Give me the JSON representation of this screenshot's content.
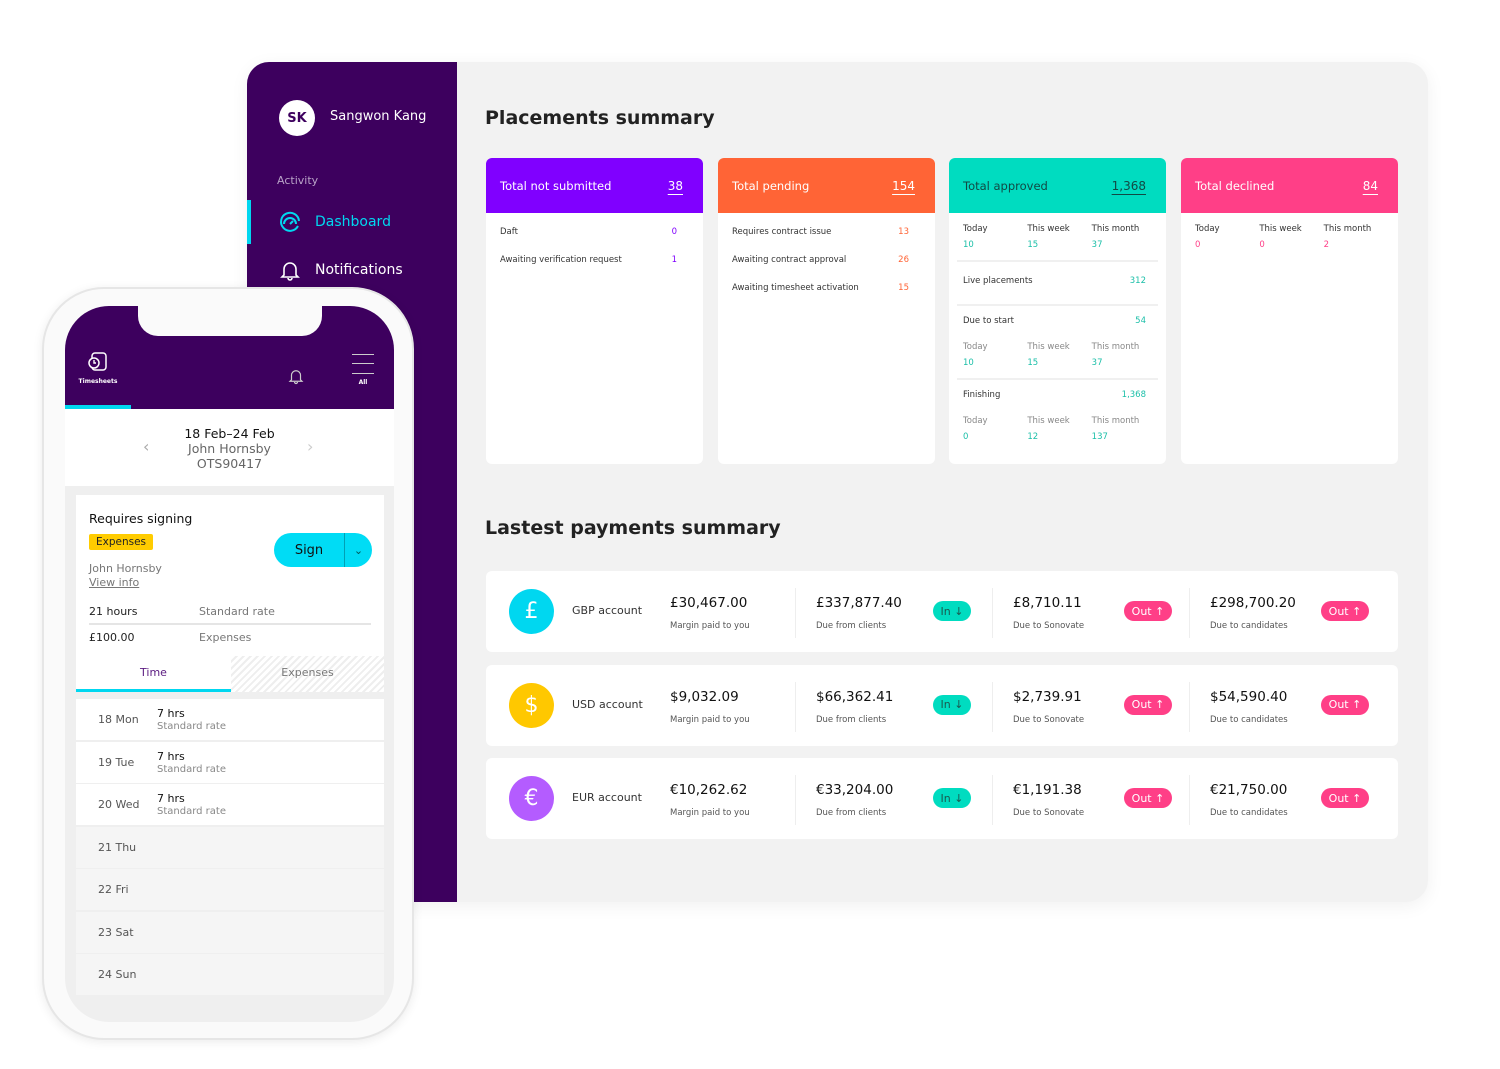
{
  "sidebar": {
    "initials": "SK",
    "user": "Sangwon Kang",
    "section": "Activity",
    "items": [
      {
        "label": "Dashboard",
        "icon": "gauge-icon"
      },
      {
        "label": "Notifications",
        "icon": "bell-icon"
      }
    ]
  },
  "placements": {
    "title": "Placements summary",
    "cards": [
      {
        "title": "Total not submitted",
        "total": "38",
        "color": "#8000ff",
        "rows": [
          {
            "label": "Daft",
            "value": "0"
          },
          {
            "label": "Awaiting verification request",
            "value": "1"
          }
        ]
      },
      {
        "title": "Total pending",
        "total": "154",
        "color": "#ff6436",
        "rows": [
          {
            "label": "Requires contract issue",
            "value": "13"
          },
          {
            "label": "Awaiting contract approval",
            "value": "26"
          },
          {
            "label": "Awaiting timesheet activation",
            "value": "15"
          }
        ]
      },
      {
        "title": "Total approved",
        "total": "1,368",
        "color": "#00dcc0",
        "sections": [
          {
            "periods": [
              "Today",
              "This week",
              "This month"
            ],
            "values": [
              "10",
              "15",
              "37"
            ]
          },
          {
            "label": "Live placements",
            "value": "312"
          },
          {
            "label": "Due to start",
            "value": "54",
            "periods": [
              "Today",
              "This week",
              "This month"
            ],
            "values": [
              "10",
              "15",
              "37"
            ]
          },
          {
            "label": "Finishing",
            "value": "1,368",
            "periods": [
              "Today",
              "This week",
              "This month"
            ],
            "values": [
              "0",
              "12",
              "137"
            ]
          }
        ]
      },
      {
        "title": "Total declined",
        "total": "84",
        "color": "#ff3f87",
        "sections": [
          {
            "periods": [
              "Today",
              "This week",
              "This month"
            ],
            "values": [
              "0",
              "0",
              "2"
            ]
          }
        ]
      }
    ]
  },
  "payments": {
    "title": "Lastest payments summary",
    "rows": [
      {
        "symbol": "£",
        "color": "#00d7f0",
        "account": "GBP account",
        "margin": "£30,467.00",
        "margin_label": "Margin paid to you",
        "clients": "£337,877.40",
        "clients_label": "Due from clients",
        "in": "In ↓",
        "sonovate": "£8,710.11",
        "sonovate_label": "Due to Sonovate",
        "out1": "Out ↑",
        "candidates": "£298,700.20",
        "candidates_label": "Due to candidates",
        "out2": "Out ↑"
      },
      {
        "symbol": "$",
        "color": "#ffc800",
        "account": "USD account",
        "margin": "$9,032.09",
        "margin_label": "Margin paid to you",
        "clients": "$66,362.41",
        "clients_label": "Due from clients",
        "in": "In ↓",
        "sonovate": "$2,739.91",
        "sonovate_label": "Due to Sonovate",
        "out1": "Out ↑",
        "candidates": "$54,590.40",
        "candidates_label": "Due to candidates",
        "out2": "Out ↑"
      },
      {
        "symbol": "€",
        "color": "#b45cff",
        "account": "EUR account",
        "margin": "€10,262.62",
        "margin_label": "Margin paid to you",
        "clients": "€33,204.00",
        "clients_label": "Due from clients",
        "in": "In ↓",
        "sonovate": "€1,191.38",
        "sonovate_label": "Due to Sonovate",
        "out1": "Out ↑",
        "candidates": "€21,750.00",
        "candidates_label": "Due to candidates",
        "out2": "Out ↑"
      }
    ]
  },
  "phone": {
    "tabs": {
      "timesheets": "Timesheets",
      "all": "All"
    },
    "range": "18 Feb–24 Feb",
    "name": "John Hornsby",
    "code": "OTS90417",
    "card": {
      "title": "Requires signing",
      "tag": "Expenses",
      "person": "John Hornsby",
      "link": "View info",
      "sign": "Sign",
      "hours": "21 hours",
      "hours_label": "Standard rate",
      "amount": "£100.00",
      "amount_label": "Expenses"
    },
    "subtabs": [
      "Time",
      "Expenses"
    ],
    "days": [
      {
        "day": "18 Mon",
        "hrs": "7 hrs",
        "rate": "Standard rate"
      },
      {
        "day": "19 Tue",
        "hrs": "7 hrs",
        "rate": "Standard rate"
      },
      {
        "day": "20 Wed",
        "hrs": "7 hrs",
        "rate": "Standard rate"
      },
      {
        "day": "21 Thu"
      },
      {
        "day": "22 Fri"
      },
      {
        "day": "23 Sat"
      },
      {
        "day": "24 Sun"
      }
    ]
  }
}
